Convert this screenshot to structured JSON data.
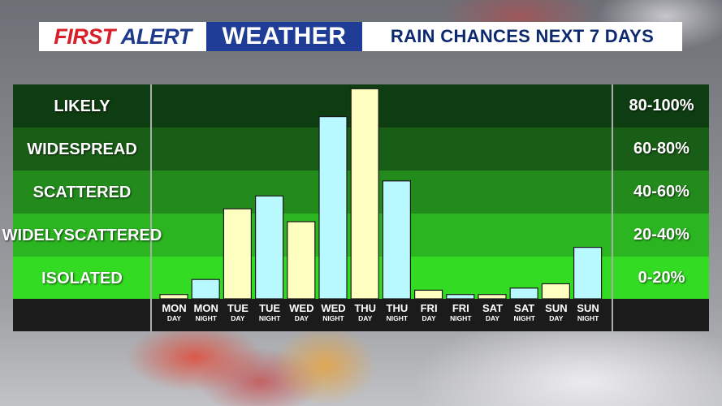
{
  "banner": {
    "first": "FIRST",
    "alert": "ALERT",
    "weather": "WEATHER",
    "title": "RAIN CHANCES NEXT 7 DAYS"
  },
  "colors": {
    "day_bar": "#ffffc0",
    "night_bar": "#b8f8ff",
    "band_1": "#0f3d12",
    "band_2": "#195e16",
    "band_3": "#238b1c",
    "band_4": "#2bb520",
    "band_5": "#33dc22"
  },
  "chart_data": {
    "type": "bar",
    "title": "RAIN CHANCES NEXT 7 DAYS",
    "ylim": [
      0,
      100
    ],
    "bands": [
      {
        "label_lines": [
          "LIKELY"
        ],
        "range": "80-100%"
      },
      {
        "label_lines": [
          "WIDESPREAD"
        ],
        "range": "60-80%"
      },
      {
        "label_lines": [
          "SCATTERED"
        ],
        "range": "40-60%"
      },
      {
        "label_lines": [
          "WIDELY",
          "SCATTERED"
        ],
        "range": "20-40%"
      },
      {
        "label_lines": [
          "ISOLATED"
        ],
        "range": "0-20%"
      }
    ],
    "categories": [
      {
        "day": "MON",
        "period": "DAY",
        "kind": "day"
      },
      {
        "day": "MON",
        "period": "NIGHT",
        "kind": "night"
      },
      {
        "day": "TUE",
        "period": "DAY",
        "kind": "day"
      },
      {
        "day": "TUE",
        "period": "NIGHT",
        "kind": "night"
      },
      {
        "day": "WED",
        "period": "DAY",
        "kind": "day"
      },
      {
        "day": "WED",
        "period": "NIGHT",
        "kind": "night"
      },
      {
        "day": "THU",
        "period": "DAY",
        "kind": "day"
      },
      {
        "day": "THU",
        "period": "NIGHT",
        "kind": "night"
      },
      {
        "day": "FRI",
        "period": "DAY",
        "kind": "day"
      },
      {
        "day": "FRI",
        "period": "NIGHT",
        "kind": "night"
      },
      {
        "day": "SAT",
        "period": "DAY",
        "kind": "day"
      },
      {
        "day": "SAT",
        "period": "NIGHT",
        "kind": "night"
      },
      {
        "day": "SUN",
        "period": "DAY",
        "kind": "day"
      },
      {
        "day": "SUN",
        "period": "NIGHT",
        "kind": "night"
      }
    ],
    "values": [
      2,
      9,
      42,
      48,
      36,
      85,
      98,
      55,
      4,
      2,
      2,
      5,
      7,
      24
    ]
  }
}
